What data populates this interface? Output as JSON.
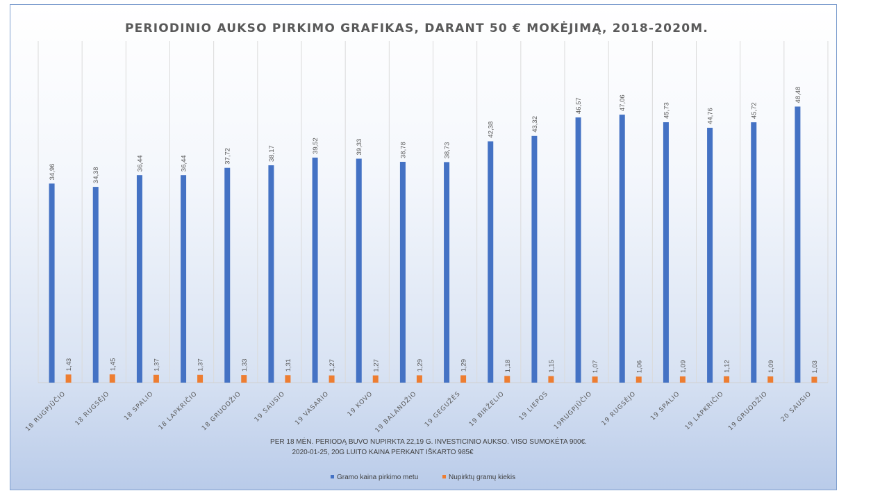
{
  "chart_data": {
    "type": "bar",
    "title": "PERIODINIO AUKSO PIRKIMO GRAFIKAS, DARANT 50 € MOKĖJIMĄ, 2018-2020M.",
    "categories": [
      "18 RUGPJŪČIO",
      "18 RUGSĖJO",
      "18 SPALIO",
      "18 LAPKRIČIO",
      "18 GRUODŽIO",
      "19 SAUSIO",
      "19 VASARIO",
      "19 KOVO",
      "19 BALANDŽIO",
      "19 GEGUŽĖS",
      "19 BIRŽELIO",
      "19 LIEPOS",
      "19RUGPJŪČIO",
      "19 RUGSĖJO",
      "19 SPALIO",
      "19 LAPKRIČIO",
      "19 GRUODŽIO",
      "20 SAUSIO"
    ],
    "series": [
      {
        "name": "Gramo kaina pirkimo metu",
        "color": "#4472c4",
        "values": [
          34.96,
          34.38,
          36.44,
          36.44,
          37.72,
          38.17,
          39.52,
          39.33,
          38.78,
          38.73,
          42.38,
          43.32,
          46.57,
          47.06,
          45.73,
          44.76,
          45.72,
          48.48
        ],
        "labels": [
          "34,96",
          "34,38",
          "36,44",
          "36,44",
          "37,72",
          "38,17",
          "39,52",
          "39,33",
          "38,78",
          "38,73",
          "42,38",
          "43,32",
          "46,57",
          "47,06",
          "45,73",
          "44,76",
          "45,72",
          "48,48"
        ]
      },
      {
        "name": "Nupirktų gramų kiekis",
        "color": "#ed7d31",
        "values": [
          1.43,
          1.45,
          1.37,
          1.37,
          1.33,
          1.31,
          1.27,
          1.27,
          1.29,
          1.29,
          1.18,
          1.15,
          1.07,
          1.06,
          1.09,
          1.12,
          1.09,
          1.03
        ],
        "labels": [
          "1,43",
          "1,45",
          "1,37",
          "1,37",
          "1,33",
          "1,31",
          "1,27",
          "1,27",
          "1,29",
          "1,29",
          "1,18",
          "1,15",
          "1,07",
          "1,06",
          "1,09",
          "1,12",
          "1,09",
          "1,03"
        ]
      }
    ],
    "notes": [
      "PER 18 MĖN. PERIODĄ BUVO NUPIRKTA 22,19 G. INVESTICINIO AUKSO. VISO SUMOKĖTA 900€.",
      "2020-01-25, 20G LUITO KAINA PERKANT IŠKARTO 985€"
    ],
    "ylim": [
      0,
      60
    ],
    "grid": "vertical",
    "legend": "bottom-center"
  }
}
